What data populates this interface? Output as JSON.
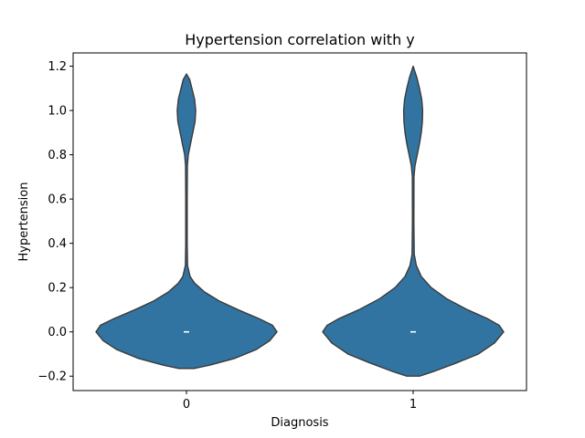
{
  "chart_data": {
    "type": "violin",
    "title": "Hypertension correlation with y",
    "xlabel": "Diagnosis",
    "ylabel": "Hypertension",
    "categories": [
      "0",
      "1"
    ],
    "ylim": [
      -0.265,
      1.26
    ],
    "yticks": [
      -0.2,
      0.0,
      0.2,
      0.4,
      0.6,
      0.8,
      1.0,
      1.2
    ],
    "ytick_labels": [
      "−0.2",
      "0.0",
      "0.2",
      "0.4",
      "0.6",
      "0.8",
      "1.0",
      "1.2"
    ],
    "grid": false,
    "fill_color": "#3274a1",
    "edge_color": "#3a3a3a",
    "median_color": "#ffffff",
    "violins": [
      {
        "category": "0",
        "median": 0.0,
        "y_min": -0.165,
        "y_max": 1.165,
        "density_profile": [
          [
            -0.165,
            0.09
          ],
          [
            -0.15,
            0.26
          ],
          [
            -0.12,
            0.53
          ],
          [
            -0.08,
            0.77
          ],
          [
            -0.04,
            0.92
          ],
          [
            0.0,
            1.0
          ],
          [
            0.03,
            0.95
          ],
          [
            0.06,
            0.8
          ],
          [
            0.1,
            0.57
          ],
          [
            0.14,
            0.36
          ],
          [
            0.18,
            0.2
          ],
          [
            0.22,
            0.09
          ],
          [
            0.25,
            0.04
          ],
          [
            0.3,
            0.012
          ],
          [
            0.4,
            0.008
          ],
          [
            0.6,
            0.008
          ],
          [
            0.75,
            0.01
          ],
          [
            0.8,
            0.02
          ],
          [
            0.85,
            0.045
          ],
          [
            0.9,
            0.07
          ],
          [
            0.95,
            0.095
          ],
          [
            1.0,
            0.102
          ],
          [
            1.05,
            0.09
          ],
          [
            1.1,
            0.06
          ],
          [
            1.14,
            0.035
          ],
          [
            1.165,
            0.0
          ]
        ]
      },
      {
        "category": "1",
        "median": 0.0,
        "y_min": -0.2,
        "y_max": 1.2,
        "density_profile": [
          [
            -0.2,
            0.07
          ],
          [
            -0.18,
            0.22
          ],
          [
            -0.14,
            0.48
          ],
          [
            -0.1,
            0.72
          ],
          [
            -0.05,
            0.9
          ],
          [
            0.0,
            1.0
          ],
          [
            0.03,
            0.95
          ],
          [
            0.06,
            0.82
          ],
          [
            0.1,
            0.6
          ],
          [
            0.15,
            0.37
          ],
          [
            0.2,
            0.2
          ],
          [
            0.25,
            0.09
          ],
          [
            0.3,
            0.035
          ],
          [
            0.35,
            0.012
          ],
          [
            0.5,
            0.008
          ],
          [
            0.7,
            0.009
          ],
          [
            0.75,
            0.02
          ],
          [
            0.8,
            0.045
          ],
          [
            0.85,
            0.07
          ],
          [
            0.9,
            0.09
          ],
          [
            0.95,
            0.102
          ],
          [
            1.0,
            0.105
          ],
          [
            1.05,
            0.095
          ],
          [
            1.1,
            0.07
          ],
          [
            1.15,
            0.04
          ],
          [
            1.2,
            0.0
          ]
        ]
      }
    ]
  }
}
